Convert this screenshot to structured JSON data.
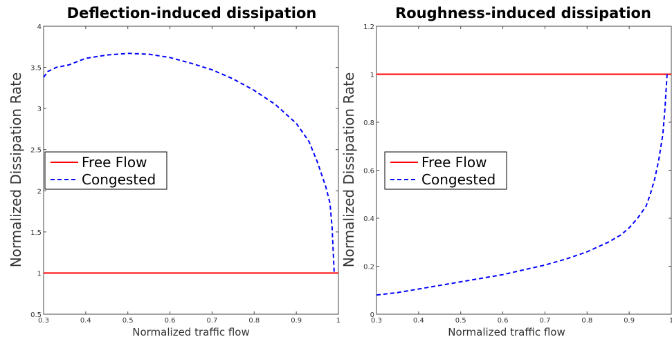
{
  "chart_data": [
    {
      "type": "line",
      "title": "Deflection-induced dissipation",
      "xlabel": "Normalized traffic flow",
      "ylabel": "Normalized Dissipation Rate",
      "xlim": [
        0.3,
        1.0
      ],
      "ylim": [
        0.5,
        4.0
      ],
      "xticks": [
        "0.3",
        "0.4",
        "0.5",
        "0.6",
        "0.7",
        "0.8",
        "0.9",
        "1"
      ],
      "yticks": [
        "0.5",
        "1",
        "1.5",
        "2",
        "2.5",
        "3",
        "3.5",
        "4"
      ],
      "grid": false,
      "legend": "center-left",
      "series": [
        {
          "name": "Free Flow",
          "style": "solid",
          "color": "#ff0000",
          "x": [
            0.3,
            1.0
          ],
          "y": [
            1.0,
            1.0
          ]
        },
        {
          "name": "Congested",
          "style": "dashed",
          "color": "#0000ff",
          "x": [
            0.3,
            0.31,
            0.33,
            0.36,
            0.38,
            0.4,
            0.45,
            0.5,
            0.55,
            0.6,
            0.65,
            0.7,
            0.75,
            0.8,
            0.85,
            0.9,
            0.93,
            0.95,
            0.97,
            0.98,
            0.985,
            0.99
          ],
          "y": [
            3.38,
            3.45,
            3.5,
            3.53,
            3.57,
            3.61,
            3.65,
            3.67,
            3.66,
            3.62,
            3.55,
            3.47,
            3.36,
            3.22,
            3.05,
            2.82,
            2.6,
            2.35,
            2.05,
            1.85,
            1.55,
            1.0
          ]
        }
      ]
    },
    {
      "type": "line",
      "title": "Roughness-induced dissipation",
      "xlabel": "Normalized traffic flow",
      "ylabel": "Normalized Dissipation Rate",
      "xlim": [
        0.3,
        1.0
      ],
      "ylim": [
        0,
        1.2
      ],
      "xticks": [
        "0.3",
        "0.4",
        "0.5",
        "0.6",
        "0.7",
        "0.8",
        "0.9",
        "1"
      ],
      "yticks": [
        "0",
        "0.2",
        "0.4",
        "0.6",
        "0.8",
        "1",
        "1.2"
      ],
      "grid": false,
      "legend": "center-left",
      "series": [
        {
          "name": "Free Flow",
          "style": "solid",
          "color": "#ff0000",
          "x": [
            0.3,
            1.0
          ],
          "y": [
            1.0,
            1.0
          ]
        },
        {
          "name": "Congested",
          "style": "dashed",
          "color": "#0000ff",
          "x": [
            0.3,
            0.35,
            0.4,
            0.45,
            0.5,
            0.55,
            0.6,
            0.65,
            0.7,
            0.75,
            0.8,
            0.85,
            0.88,
            0.9,
            0.92,
            0.94,
            0.95,
            0.96,
            0.97,
            0.98,
            0.985,
            0.99
          ],
          "y": [
            0.08,
            0.09,
            0.105,
            0.12,
            0.135,
            0.15,
            0.165,
            0.185,
            0.205,
            0.23,
            0.26,
            0.3,
            0.33,
            0.36,
            0.4,
            0.45,
            0.5,
            0.56,
            0.64,
            0.75,
            0.86,
            1.0
          ]
        }
      ]
    }
  ]
}
